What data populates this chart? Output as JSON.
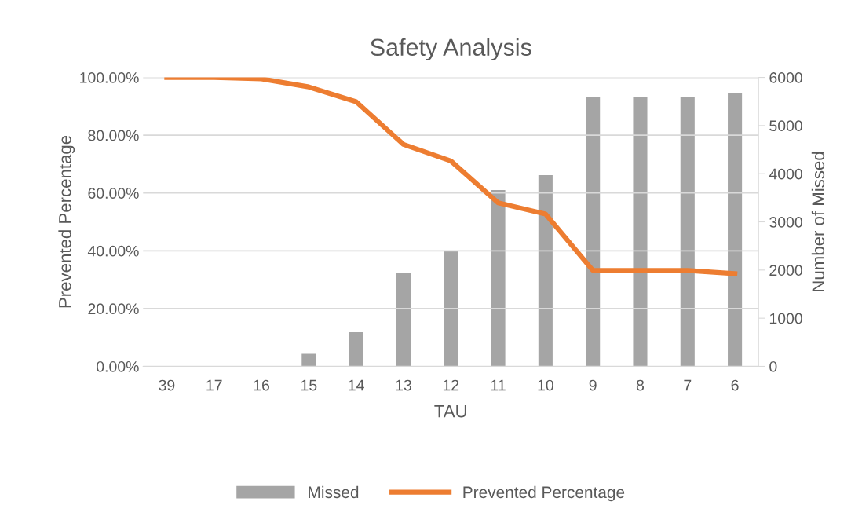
{
  "chart_data": {
    "type": "bar",
    "title": "Safety Analysis",
    "xlabel": "TAU",
    "ylabel": "Prevented Percentage",
    "y2label": "Number of Missed",
    "categories": [
      "39",
      "17",
      "16",
      "15",
      "14",
      "13",
      "12",
      "11",
      "10",
      "9",
      "8",
      "7",
      "6"
    ],
    "series": [
      {
        "name": "Missed",
        "axis": "y2",
        "color": "#a5a5a5",
        "values": [
          0,
          0,
          0,
          260,
          710,
          1950,
          2400,
          3660,
          3970,
          5590,
          5590,
          5590,
          5680
        ]
      },
      {
        "name": "Prevented Percentage",
        "type": "line",
        "axis": "y",
        "color": "#ed7d31",
        "values": [
          100,
          100,
          99.5,
          96.7,
          91.6,
          76.8,
          71.1,
          56.6,
          52.7,
          33.2,
          33.2,
          33.2,
          32.1
        ]
      }
    ],
    "ylim": [
      0,
      100
    ],
    "yticks": [
      {
        "value": 0,
        "label": "0.00%"
      },
      {
        "value": 20,
        "label": "20.00%"
      },
      {
        "value": 40,
        "label": "40.00%"
      },
      {
        "value": 60,
        "label": "60.00%"
      },
      {
        "value": 80,
        "label": "80.00%"
      },
      {
        "value": 100,
        "label": "100.00%"
      }
    ],
    "y2lim": [
      0,
      6000
    ],
    "y2ticks": [
      0,
      1000,
      2000,
      3000,
      4000,
      5000,
      6000
    ],
    "grid": "y",
    "legend": "bottom",
    "marker": "none",
    "line_style": "solid"
  }
}
